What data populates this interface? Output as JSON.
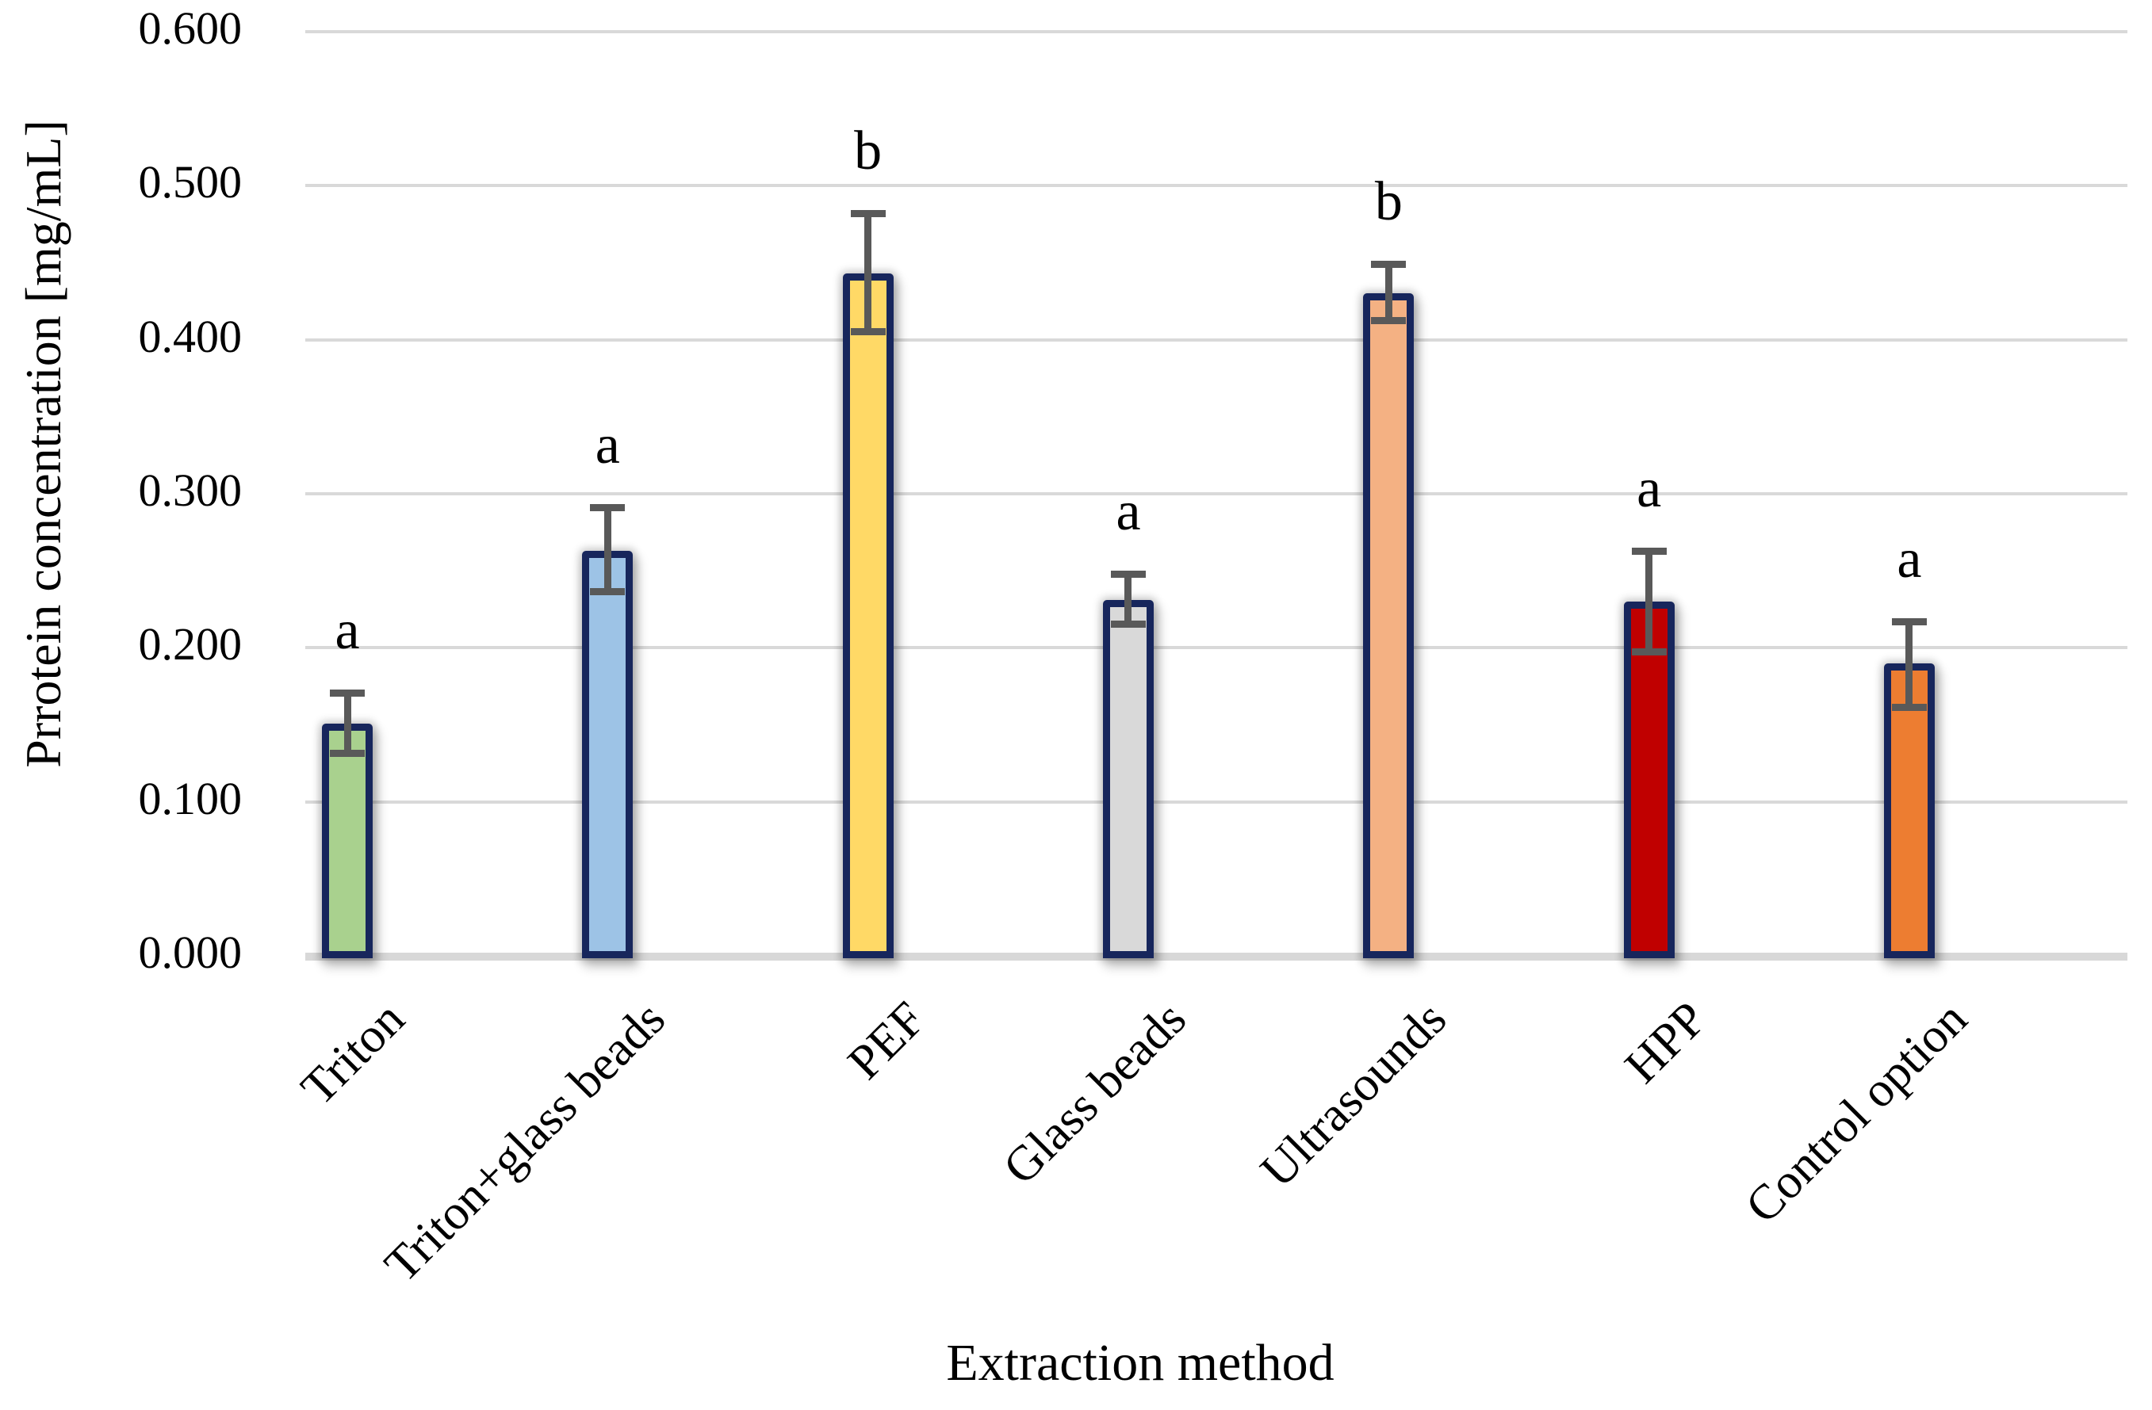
{
  "chart_data": {
    "type": "bar",
    "title": "",
    "xlabel": "Extraction method",
    "ylabel": "Prrotein concentration [mg/mL]",
    "categories": [
      "Triton",
      "Triton+glass beads",
      "PEF",
      "Glass beads",
      "Ultrasounds",
      "HPP",
      "Control option"
    ],
    "values": [
      0.151,
      0.263,
      0.443,
      0.231,
      0.43,
      0.23,
      0.19
    ],
    "error_upper": [
      0.171,
      0.291,
      0.482,
      0.248,
      0.449,
      0.263,
      0.217
    ],
    "error_lower": [
      0.131,
      0.236,
      0.405,
      0.215,
      0.412,
      0.197,
      0.161
    ],
    "sig_letters": [
      "a",
      "a",
      "b",
      "a",
      "b",
      "a",
      "a"
    ],
    "bar_colors": [
      "#a9d18e",
      "#9dc3e6",
      "#ffd966",
      "#d9d9d9",
      "#f4b183",
      "#c00000",
      "#ed7d31"
    ],
    "bar_border_color": "#17265c",
    "error_bar_color": "#595959",
    "gridline_color": "#d9d9d9",
    "axis_line_color": "#d8d8d8",
    "background_color": "#ffffff",
    "ylim": [
      0,
      0.6
    ],
    "ytick_labels": [
      "0.000",
      "0.100",
      "0.200",
      "0.300",
      "0.400",
      "0.500",
      "0.600"
    ],
    "grid": true,
    "legend_position": "none"
  }
}
